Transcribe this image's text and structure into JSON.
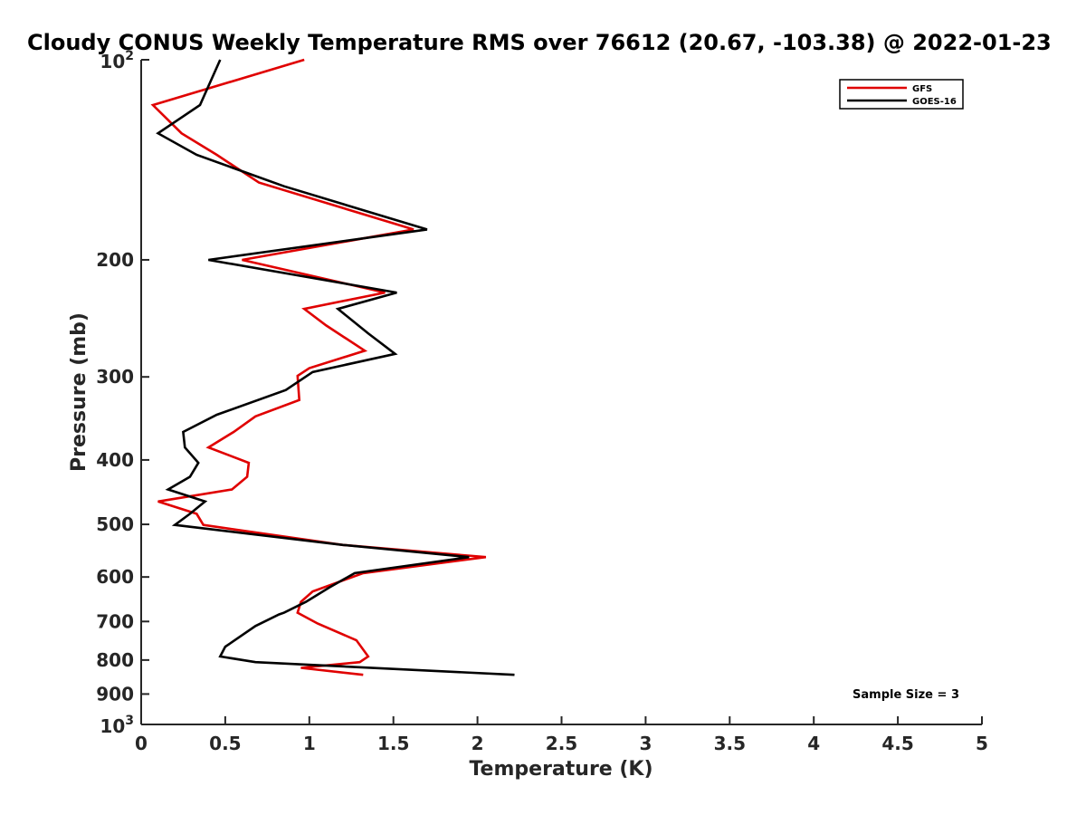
{
  "chart_data": {
    "type": "line",
    "title": "Cloudy CONUS Weekly Temperature RMS over 76612 (20.67, -103.38) @ 2022-01-23",
    "xlabel": "Temperature (K)",
    "ylabel": "Pressure (mb)",
    "xlim": [
      0,
      5
    ],
    "ylim": [
      100,
      1000
    ],
    "y_scale": "log",
    "y_reversed": true,
    "grid": false,
    "legend_position": "top-right",
    "x_ticks": [
      "0",
      "0.5",
      "1",
      "1.5",
      "2",
      "2.5",
      "3",
      "3.5",
      "4",
      "4.5",
      "5"
    ],
    "y_ticks": [
      {
        "value": 100,
        "base": "10",
        "exp": "2"
      },
      {
        "value": 200,
        "label": "200"
      },
      {
        "value": 300,
        "label": "300"
      },
      {
        "value": 400,
        "label": "400"
      },
      {
        "value": 500,
        "label": "500"
      },
      {
        "value": 600,
        "label": "600"
      },
      {
        "value": 700,
        "label": "700"
      },
      {
        "value": 800,
        "label": "800"
      },
      {
        "value": 900,
        "label": "900"
      },
      {
        "value": 1000,
        "base": "10",
        "exp": "3"
      }
    ],
    "series": [
      {
        "name": "GFS",
        "color": "#e00000",
        "points": [
          [
            0.97,
            100
          ],
          [
            0.07,
            117
          ],
          [
            0.24,
            129
          ],
          [
            0.45,
            139
          ],
          [
            0.7,
            153
          ],
          [
            1.62,
            180
          ],
          [
            0.6,
            200
          ],
          [
            1.45,
            224
          ],
          [
            0.97,
            237
          ],
          [
            1.1,
            251
          ],
          [
            1.33,
            274
          ],
          [
            1.0,
            291
          ],
          [
            0.93,
            299
          ],
          [
            0.94,
            325
          ],
          [
            0.68,
            344
          ],
          [
            0.55,
            363
          ],
          [
            0.4,
            383
          ],
          [
            0.64,
            404
          ],
          [
            0.63,
            424
          ],
          [
            0.54,
            443
          ],
          [
            0.1,
            462
          ],
          [
            0.33,
            482
          ],
          [
            0.37,
            501
          ],
          [
            1.2,
            537
          ],
          [
            2.05,
            560
          ],
          [
            1.32,
            592
          ],
          [
            1.02,
            631
          ],
          [
            0.95,
            654
          ],
          [
            0.93,
            679
          ],
          [
            1.05,
            705
          ],
          [
            1.28,
            747
          ],
          [
            1.35,
            790
          ],
          [
            1.3,
            806
          ],
          [
            0.95,
            822
          ],
          [
            1.32,
            842
          ]
        ]
      },
      {
        "name": "GOES-16",
        "color": "#000000",
        "points": [
          [
            0.47,
            100
          ],
          [
            0.35,
            117
          ],
          [
            0.1,
            129
          ],
          [
            0.33,
            139
          ],
          [
            0.85,
            155
          ],
          [
            1.7,
            180
          ],
          [
            0.4,
            200
          ],
          [
            1.52,
            224
          ],
          [
            1.17,
            237
          ],
          [
            1.35,
            258
          ],
          [
            1.51,
            277
          ],
          [
            1.02,
            295
          ],
          [
            0.86,
            314
          ],
          [
            0.45,
            342
          ],
          [
            0.25,
            363
          ],
          [
            0.26,
            383
          ],
          [
            0.34,
            404
          ],
          [
            0.29,
            424
          ],
          [
            0.16,
            443
          ],
          [
            0.38,
            462
          ],
          [
            0.29,
            482
          ],
          [
            0.2,
            501
          ],
          [
            1.2,
            537
          ],
          [
            1.95,
            560
          ],
          [
            1.27,
            592
          ],
          [
            1.12,
            622
          ],
          [
            0.98,
            654
          ],
          [
            0.85,
            679
          ],
          [
            0.82,
            683
          ],
          [
            0.68,
            711
          ],
          [
            0.5,
            764
          ],
          [
            0.47,
            790
          ],
          [
            0.68,
            806
          ],
          [
            2.22,
            842
          ]
        ]
      }
    ],
    "annotation": "Sample Size = 3"
  }
}
